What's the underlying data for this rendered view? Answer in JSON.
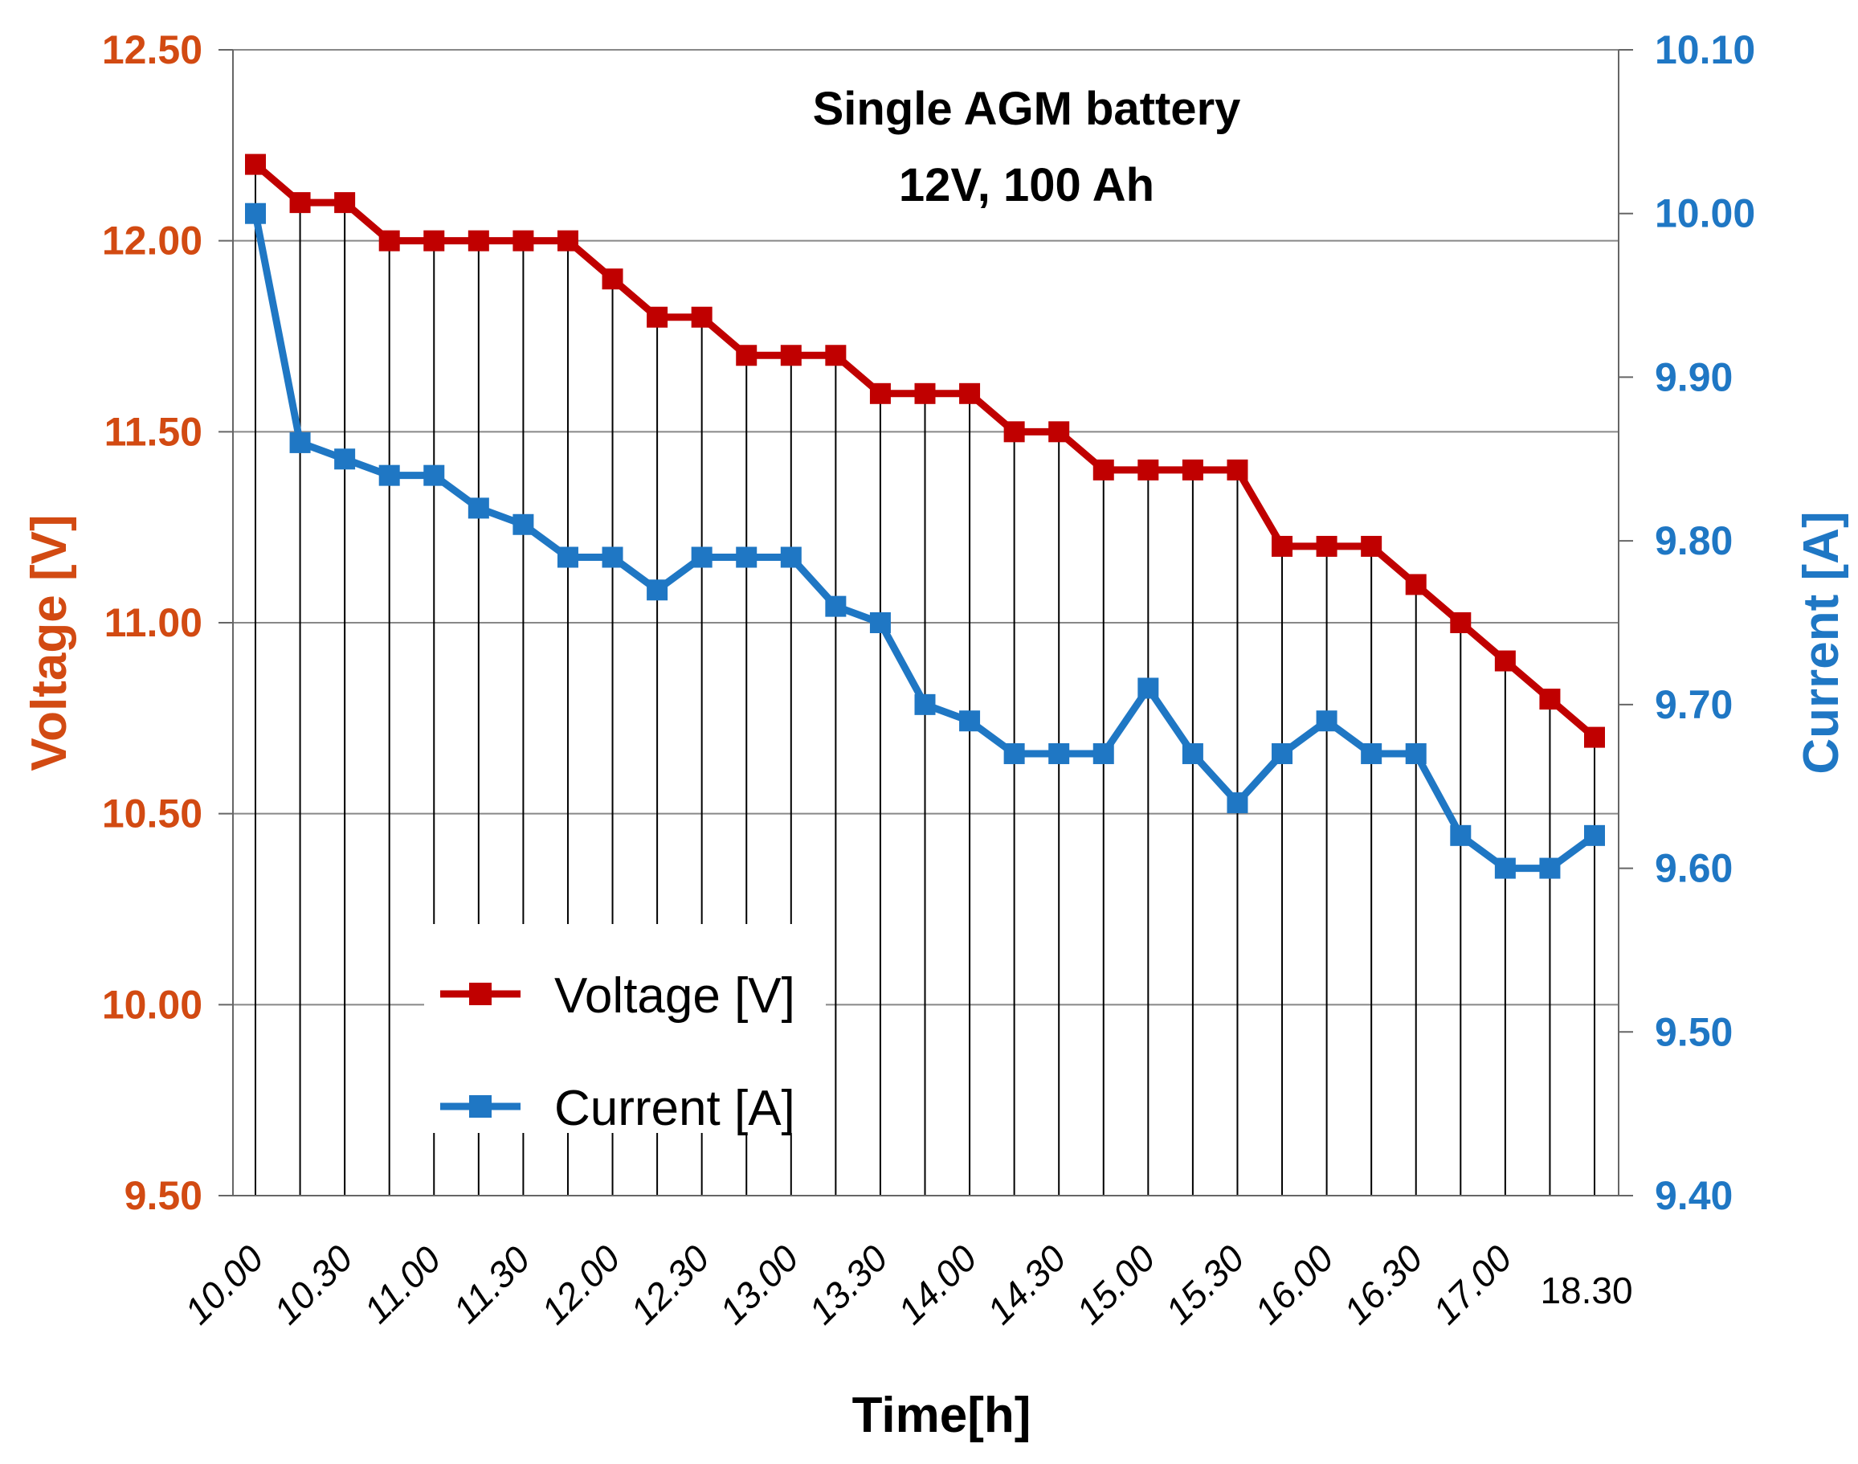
{
  "colors": {
    "voltage": "#c00000",
    "current": "#1f77c4",
    "left_axis": "#d24a12",
    "right_axis": "#1f77c4",
    "grid": "#888888",
    "vline": "#000000",
    "text": "#000000"
  },
  "chart_data": {
    "type": "line",
    "title": [
      "Single AGM battery",
      "12V, 100 Ah"
    ],
    "xlabel": "Time[h]",
    "ylabel_left": "Voltage [V]",
    "ylabel_right": "Current [A]",
    "ylim_left": [
      9.5,
      12.5
    ],
    "ylim_right": [
      9.4,
      10.1
    ],
    "yticks_left": [
      "9.50",
      "10.00",
      "10.50",
      "11.00",
      "11.50",
      "12.00",
      "12.50"
    ],
    "yticks_right": [
      "9.40",
      "9.50",
      "9.60",
      "9.70",
      "9.80",
      "9.90",
      "10.00",
      "10.10"
    ],
    "xticks": [
      "10.00",
      "10.30",
      "11.00",
      "11.30",
      "12.00",
      "12.30",
      "13.00",
      "13.30",
      "14.00",
      "14.30",
      "15.00",
      "15.30",
      "16.00",
      "16.30",
      "17.00",
      "18.30"
    ],
    "legend": [
      "Voltage [V]",
      "Current [A]"
    ],
    "legend_position": "bottom-left",
    "grid": true,
    "series": [
      {
        "name": "Voltage [V]",
        "axis": "left",
        "values": [
          12.2,
          12.1,
          12.1,
          12.0,
          12.0,
          12.0,
          12.0,
          12.0,
          11.9,
          11.8,
          11.8,
          11.7,
          11.7,
          11.7,
          11.6,
          11.6,
          11.6,
          11.5,
          11.5,
          11.4,
          11.4,
          11.4,
          11.4,
          11.2,
          11.2,
          11.2,
          11.1,
          11.0,
          10.9,
          10.8,
          10.7
        ]
      },
      {
        "name": "Current [A]",
        "axis": "right",
        "values": [
          10.0,
          9.86,
          9.85,
          9.84,
          9.84,
          9.82,
          9.81,
          9.79,
          9.79,
          9.77,
          9.79,
          9.79,
          9.79,
          9.76,
          9.75,
          9.7,
          9.69,
          9.67,
          9.67,
          9.67,
          9.71,
          9.67,
          9.64,
          9.67,
          9.69,
          9.67,
          9.67,
          9.62,
          9.6,
          9.6,
          9.62
        ]
      }
    ]
  }
}
